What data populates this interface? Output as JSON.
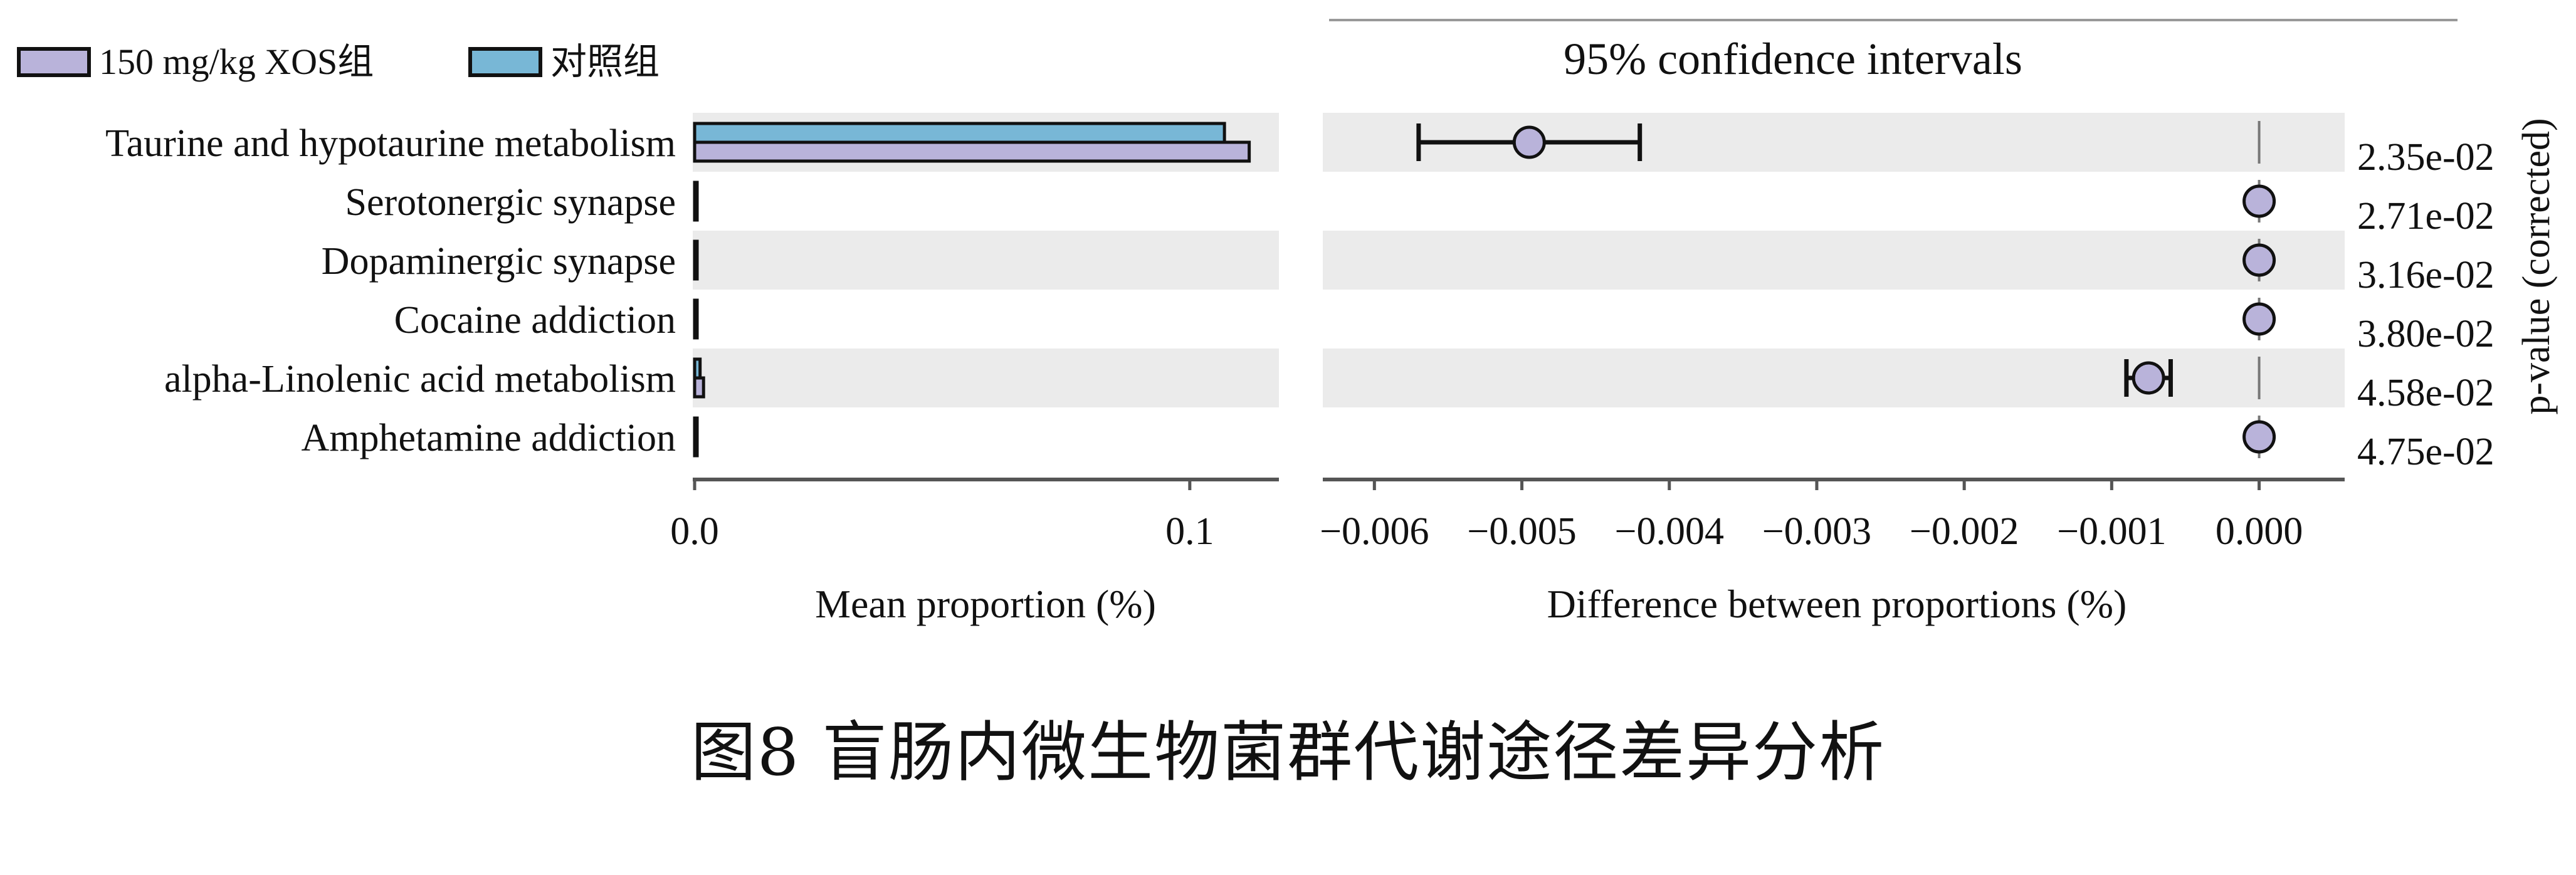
{
  "chart_data": [
    {
      "type": "bar",
      "orientation": "horizontal",
      "categories": [
        "Taurine and hypotaurine metabolism",
        "Serotonergic synapse",
        "Dopaminergic synapse",
        "Cocaine addiction",
        "alpha-Linolenic acid metabolism",
        "Amphetamine addiction"
      ],
      "series": [
        {
          "name": "150 mg/kg XOS组",
          "color": "#b9b3da",
          "values": [
            0.112,
            0.0003,
            0.0003,
            0.0003,
            0.0018,
            0.0003
          ]
        },
        {
          "name": "对照组",
          "color": "#78b7d6",
          "values": [
            0.107,
            0.0003,
            0.0003,
            0.0003,
            0.0011,
            0.0003
          ]
        }
      ],
      "xlabel": "Mean proportion (%)",
      "xlim": [
        0,
        0.118
      ],
      "xticks": [
        0.0,
        0.1
      ],
      "xtick_labels": [
        "0.0",
        "0.1"
      ],
      "legend": "top-left"
    },
    {
      "type": "scatter",
      "subtype": "error-bar",
      "title": "95% confidence intervals",
      "categories": [
        "Taurine and hypotaurine metabolism",
        "Serotonergic synapse",
        "Dopaminergic synapse",
        "Cocaine addiction",
        "alpha-Linolenic acid metabolism",
        "Amphetamine addiction"
      ],
      "values": [
        -0.00495,
        0.0,
        0.0,
        0.0,
        -0.00075,
        0.0
      ],
      "ci_low": [
        -0.0057,
        -1e-05,
        -1e-05,
        -1e-05,
        -0.0009,
        -1e-05
      ],
      "ci_high": [
        -0.0042,
        1e-05,
        1e-05,
        1e-05,
        -0.0006,
        1e-05
      ],
      "xlabel": "Difference between proportions (%)",
      "xlim": [
        -0.00635,
        0.00058
      ],
      "xticks": [
        -0.006,
        -0.005,
        -0.004,
        -0.003,
        -0.002,
        -0.001,
        0.0
      ],
      "xtick_labels": [
        "−0.006",
        "−0.005",
        "−0.004",
        "−0.003",
        "−0.002",
        "−0.001",
        "0.000"
      ],
      "point_color": "#b9b3da",
      "p_values": [
        "2.35e-02",
        "2.71e-02",
        "3.16e-02",
        "3.80e-02",
        "4.58e-02",
        "4.75e-02"
      ],
      "ylabel_right": "p-value (corrected)"
    }
  ],
  "caption": "图8 盲肠内微生物菌群代谢途径差异分析"
}
